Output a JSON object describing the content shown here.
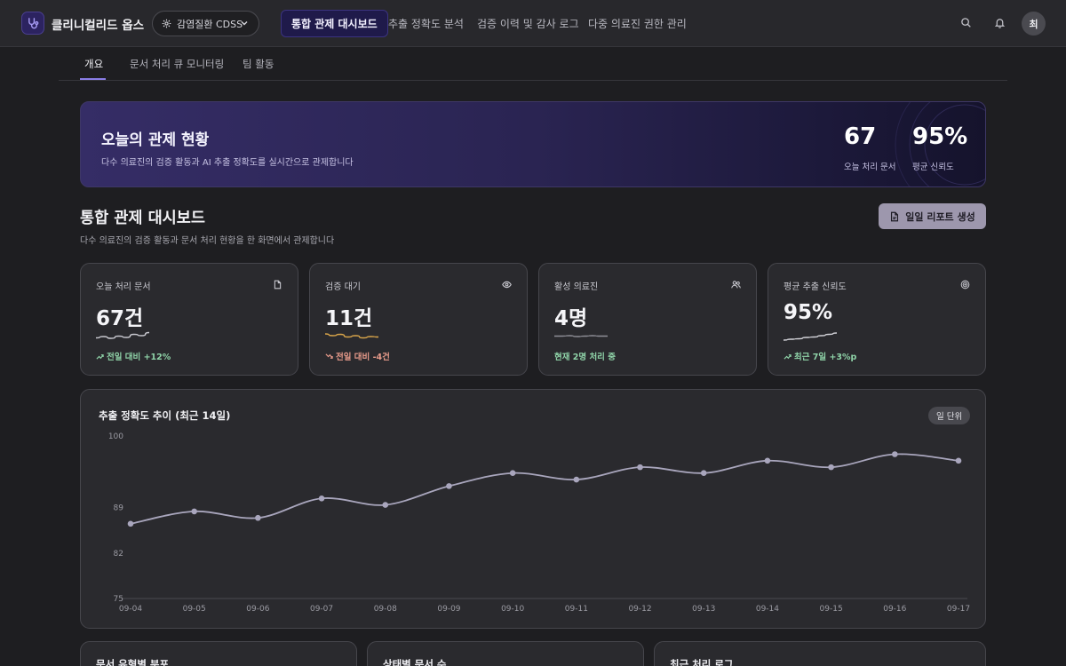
{
  "app": {
    "title": "클리니컬리드 옵스"
  },
  "context_select": {
    "value": "감염질환 CDSS"
  },
  "nav": {
    "tabs": [
      {
        "label": "통합 관제 대시보드",
        "active": true
      },
      {
        "label": "추출 정확도 분석",
        "active": false
      },
      {
        "label": "검증 이력 및 감사 로그",
        "active": false
      },
      {
        "label": "다중 의료진 권한 관리",
        "active": false
      }
    ]
  },
  "user": {
    "avatar_initial": "최"
  },
  "subtabs": [
    {
      "label": "개요",
      "active": true
    },
    {
      "label": "문서 처리 큐 모니터링",
      "active": false
    },
    {
      "label": "팀 활동",
      "active": false
    }
  ],
  "hero": {
    "title": "오늘의 관제 현황",
    "subtitle": "다수 의료진의 검증 활동과 AI 추출 정확도를 실시간으로 관제합니다",
    "stats": [
      {
        "value": "67",
        "label": "오늘 처리 문서"
      },
      {
        "value": "95%",
        "label": "평균 신뢰도"
      }
    ]
  },
  "section": {
    "title": "통합 관제 대시보드",
    "subtitle": "다수 의료진의 검증 활동과 문서 처리 현황을 한 화면에서 관제합니다",
    "report_button": "일일 리포트 생성"
  },
  "cards": [
    {
      "label": "오늘 처리 문서",
      "value": "67건",
      "delta": "전일 대비 +12%",
      "trend": "up",
      "icon": "document-icon",
      "spark": [
        0.35,
        0.5,
        0.3,
        0.55,
        0.4,
        0.75,
        0.6,
        0.95
      ],
      "spark_color": "#c9c9d0",
      "delta_color": "#8fd3a8"
    },
    {
      "label": "검증 대기",
      "value": "11건",
      "delta": "전일 대비 -4건",
      "trend": "down",
      "icon": "eye-icon",
      "spark": [
        0.8,
        0.6,
        0.75,
        0.45,
        0.6,
        0.35,
        0.5,
        0.45
      ],
      "spark_color": "#d9a54a",
      "delta_color": "#e79a8a"
    },
    {
      "label": "활성 의료진",
      "value": "4명",
      "delta": "현재 2명 처리 중",
      "trend": "none",
      "icon": "users-icon",
      "spark": [
        0.55,
        0.55,
        0.6,
        0.5,
        0.55,
        0.6,
        0.55,
        0.55
      ],
      "spark_color": "#8e8e96",
      "delta_color": "#8fd3a8"
    },
    {
      "label": "평균 추출 신뢰도",
      "value": "95%",
      "delta": "최근 7일 +3%p",
      "trend": "up",
      "icon": "target-icon",
      "spark": [
        0.1,
        0.2,
        0.25,
        0.4,
        0.45,
        0.6,
        0.75,
        0.9
      ],
      "spark_color": "#d4d4da",
      "delta_color": "#8fd3a8"
    }
  ],
  "chart_data": {
    "type": "line",
    "title": "추출 정확도 추이 (최근 14일)",
    "period_label": "일 단위",
    "x": [
      "09-04",
      "09-05",
      "09-06",
      "09-07",
      "09-08",
      "09-09",
      "09-10",
      "09-11",
      "09-12",
      "09-13",
      "09-14",
      "09-15",
      "09-16",
      "09-17"
    ],
    "series": [
      {
        "values": [
          86.5,
          88.4,
          87.4,
          90.4,
          89.4,
          92.3,
          94.3,
          93.3,
          95.2,
          94.3,
          96.2,
          95.2,
          97.2,
          96.2
        ]
      }
    ],
    "y_ticks": [
      100,
      89,
      82,
      75
    ],
    "ylim": [
      75,
      100
    ],
    "line_color": "#a9a6bd",
    "grid": false
  },
  "bottom_cards": [
    {
      "title": "문서 유형별 분포"
    },
    {
      "title": "상태별 문서 수"
    },
    {
      "title": "최근 처리 로그"
    }
  ]
}
